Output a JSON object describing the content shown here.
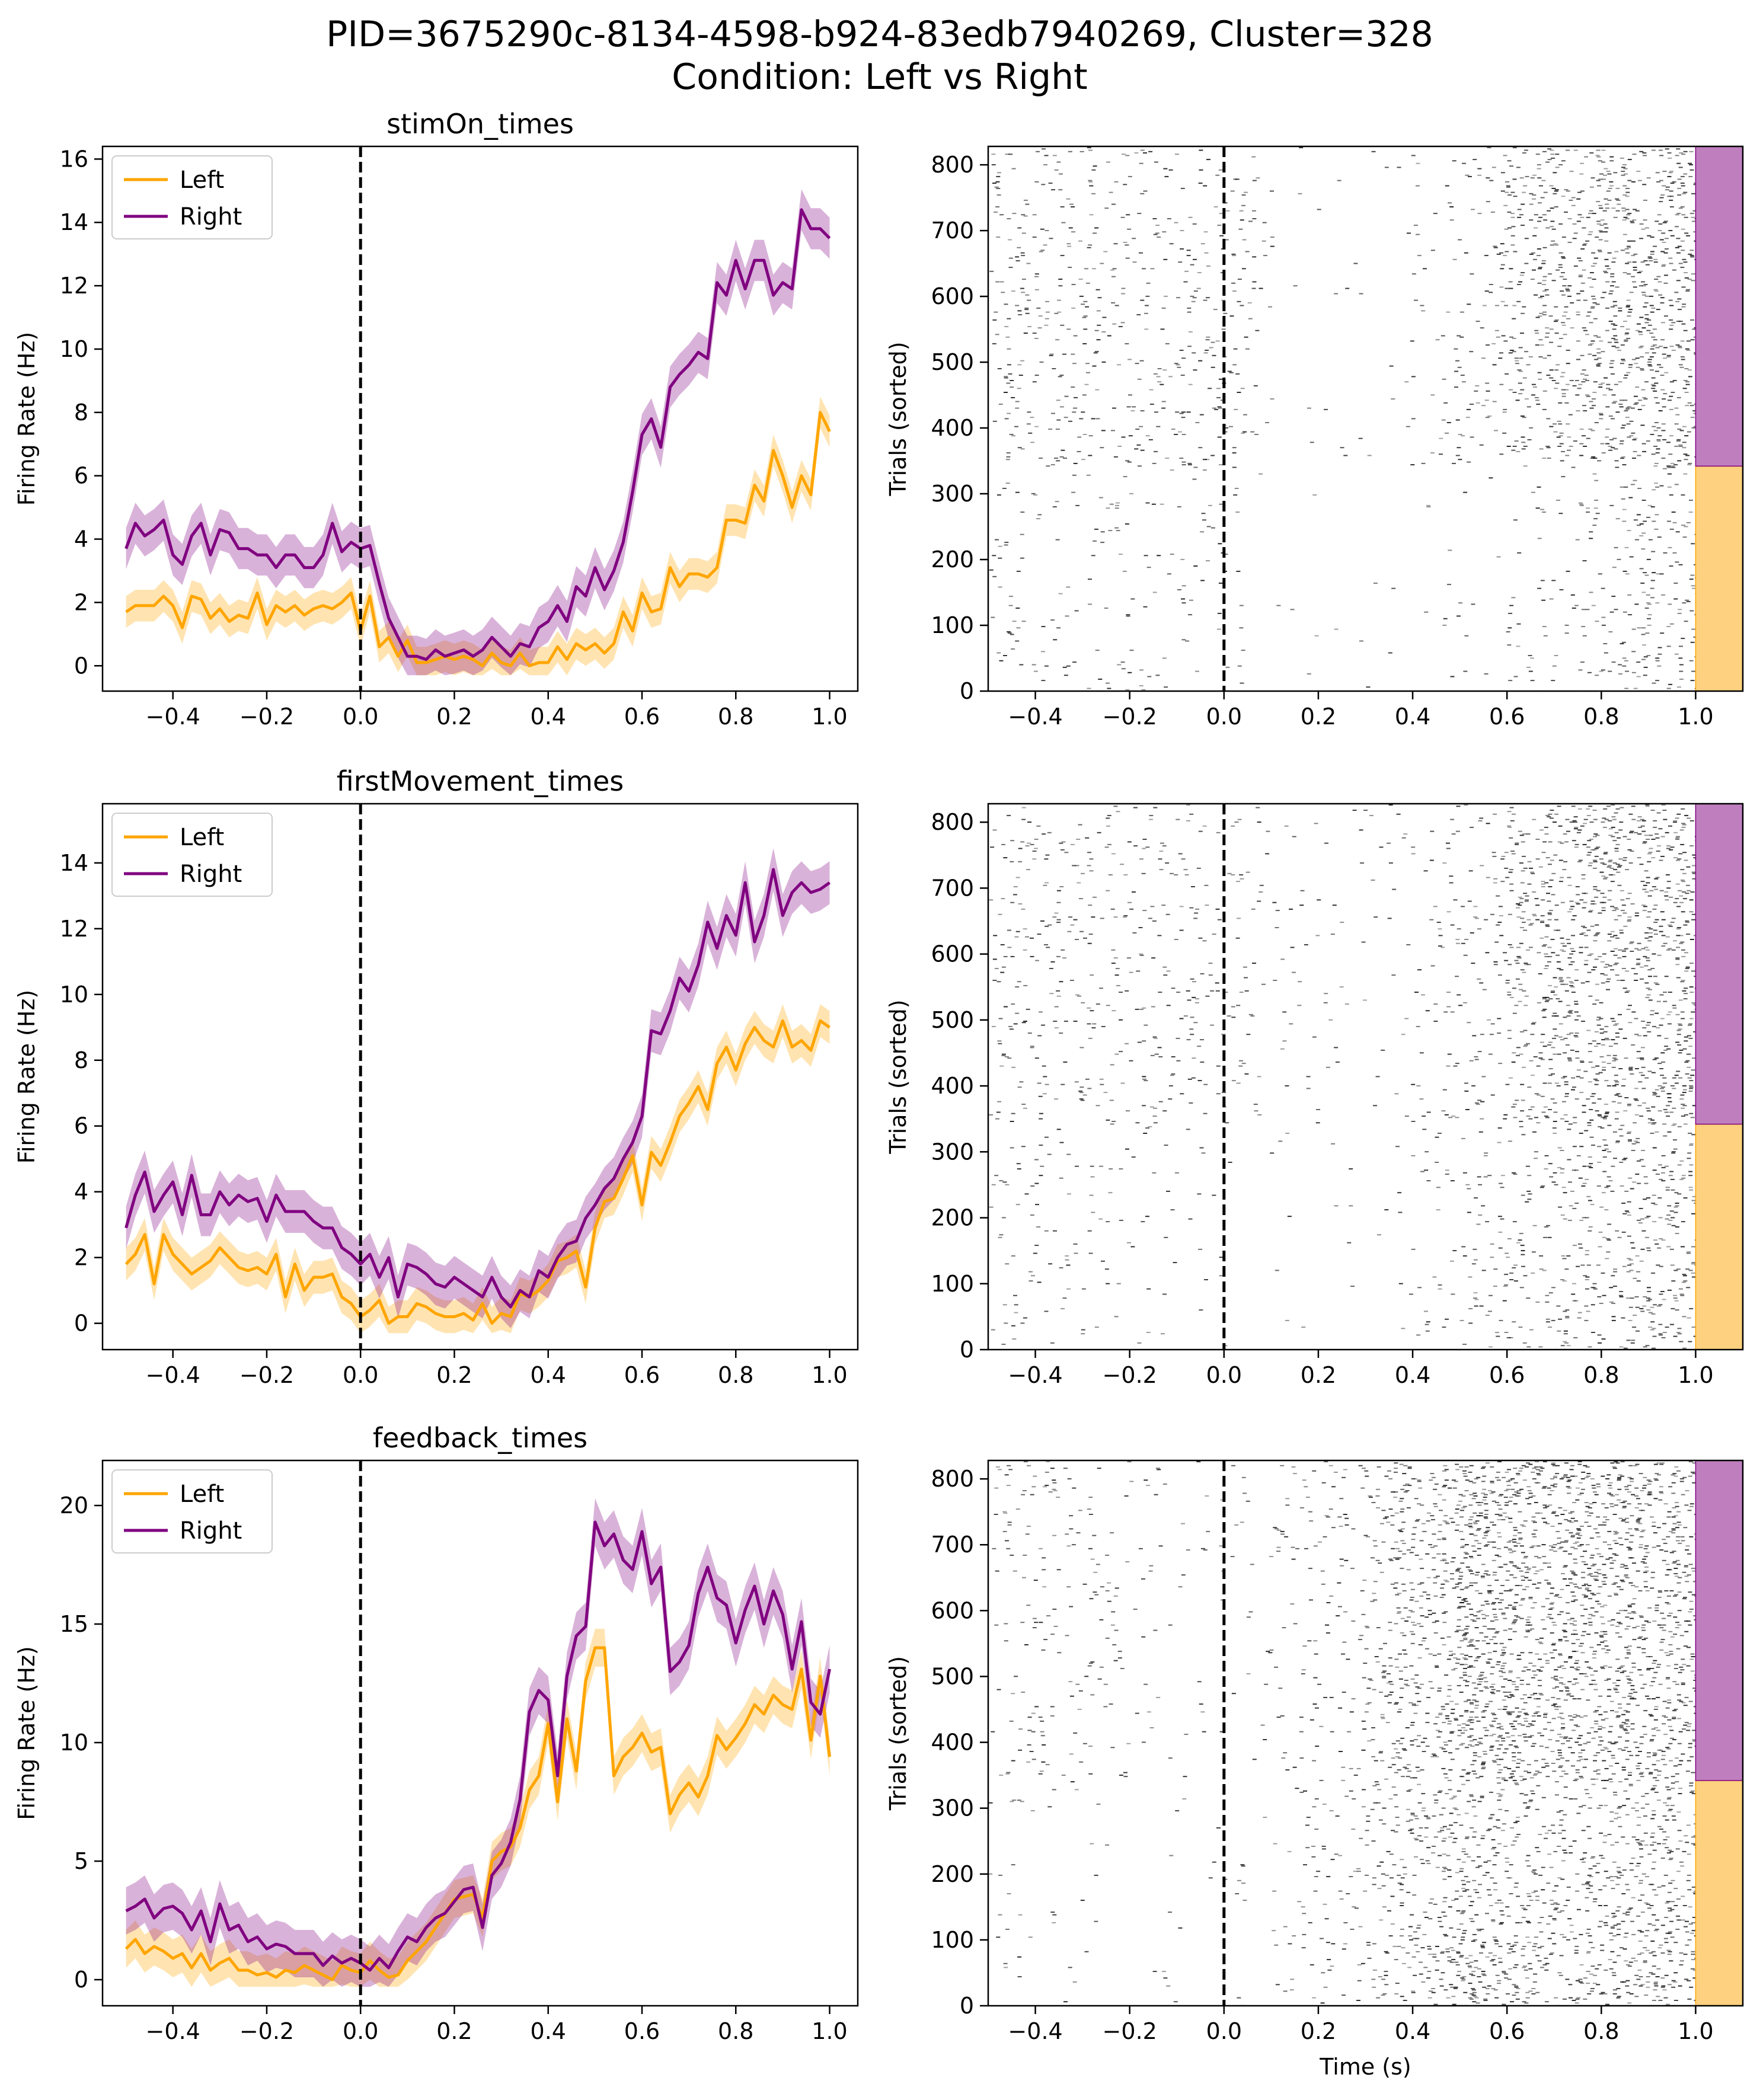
{
  "figure": {
    "suptitle_line1": "PID=3675290c-8134-4598-b924-83edb7940269, Cluster=328",
    "suptitle_line2": "Condition: Left vs Right"
  },
  "colors": {
    "left": "#ffa500",
    "right": "#800080",
    "left_bar": "#fdd17f",
    "right_bar": "#bf7fbf",
    "raster": "#000000"
  },
  "legend": {
    "left": "Left",
    "right": "Right"
  },
  "raster_axes": {
    "xlabel": "Time (s)",
    "ylabel": "Trials (sorted)",
    "xlim": [
      -0.5,
      1.1
    ],
    "ylim": [
      0,
      828
    ],
    "yticks": [
      0,
      100,
      200,
      300,
      400,
      500,
      600,
      700,
      800
    ],
    "xticks": [
      -0.4,
      -0.2,
      0.0,
      0.2,
      0.4,
      0.6,
      0.8,
      1.0
    ],
    "xtick_labels": [
      "−0.4",
      "−0.2",
      "0.0",
      "0.2",
      "0.4",
      "0.6",
      "0.8",
      "1.0"
    ],
    "left_trials": 342,
    "total_trials": 828
  },
  "chart_data": [
    {
      "type": "line",
      "title": "stimOn_times",
      "xlabel": "",
      "ylabel": "Firing Rate (Hz)",
      "xlim": [
        -0.55,
        1.06
      ],
      "ylim": [
        -0.8,
        16.4
      ],
      "yticks": [
        0,
        2,
        4,
        6,
        8,
        10,
        12,
        14,
        16
      ],
      "xticks": [
        -0.4,
        -0.2,
        0.0,
        0.2,
        0.4,
        0.6,
        0.8,
        1.0
      ],
      "xtick_labels": [
        "−0.4",
        "−0.2",
        "0.0",
        "0.2",
        "0.4",
        "0.6",
        "0.8",
        "1.0"
      ],
      "x": [
        -0.5,
        -0.48,
        -0.46,
        -0.44,
        -0.42,
        -0.4,
        -0.38,
        -0.36,
        -0.34,
        -0.32,
        -0.3,
        -0.28,
        -0.26,
        -0.24,
        -0.22,
        -0.2,
        -0.18,
        -0.16,
        -0.14,
        -0.12,
        -0.1,
        -0.08,
        -0.06,
        -0.04,
        -0.02,
        0.0,
        0.02,
        0.04,
        0.06,
        0.08,
        0.1,
        0.12,
        0.14,
        0.16,
        0.18,
        0.2,
        0.22,
        0.24,
        0.26,
        0.28,
        0.3,
        0.32,
        0.34,
        0.36,
        0.38,
        0.4,
        0.42,
        0.44,
        0.46,
        0.48,
        0.5,
        0.52,
        0.54,
        0.56,
        0.58,
        0.6,
        0.62,
        0.64,
        0.66,
        0.68,
        0.7,
        0.72,
        0.74,
        0.76,
        0.78,
        0.8,
        0.82,
        0.84,
        0.86,
        0.88,
        0.9,
        0.92,
        0.94,
        0.96,
        0.98,
        1.0
      ],
      "series": [
        {
          "name": "Left",
          "color": "#ffa500",
          "values": [
            1.7,
            1.9,
            1.9,
            1.9,
            2.2,
            1.9,
            1.2,
            2.2,
            2.1,
            1.5,
            1.8,
            1.4,
            1.6,
            1.5,
            2.3,
            1.3,
            1.9,
            1.7,
            1.9,
            1.6,
            1.8,
            1.9,
            1.8,
            2.0,
            2.3,
            1.1,
            2.2,
            0.6,
            0.9,
            0.3,
            0.8,
            0.1,
            0.1,
            0.2,
            0.3,
            0.2,
            0.3,
            0.2,
            0.0,
            0.4,
            0.1,
            0.0,
            0.4,
            0.0,
            0.1,
            0.1,
            0.6,
            0.2,
            0.7,
            0.5,
            0.7,
            0.4,
            0.7,
            1.7,
            1.1,
            2.3,
            1.7,
            1.8,
            3.1,
            2.5,
            2.9,
            2.9,
            2.8,
            3.1,
            4.6,
            4.6,
            4.5,
            5.7,
            5.2,
            6.8,
            6.0,
            5.0,
            6.0,
            5.4,
            8.0,
            7.4
          ]
        },
        {
          "name": "Right",
          "color": "#800080",
          "values": [
            3.7,
            4.5,
            4.1,
            4.3,
            4.6,
            3.5,
            3.2,
            4.1,
            4.5,
            3.5,
            4.3,
            4.2,
            3.7,
            3.7,
            3.5,
            3.5,
            3.1,
            3.5,
            3.5,
            3.1,
            3.1,
            3.5,
            4.5,
            3.6,
            3.9,
            3.7,
            3.8,
            2.6,
            1.5,
            0.9,
            0.3,
            0.3,
            0.2,
            0.5,
            0.3,
            0.4,
            0.5,
            0.3,
            0.5,
            0.9,
            0.6,
            0.3,
            0.7,
            0.6,
            1.2,
            1.4,
            1.9,
            1.4,
            2.5,
            2.2,
            3.1,
            2.4,
            3.0,
            3.9,
            5.5,
            7.3,
            7.8,
            6.9,
            8.8,
            9.2,
            9.5,
            9.9,
            9.7,
            12.1,
            11.7,
            12.8,
            11.9,
            12.8,
            12.8,
            11.7,
            12.1,
            11.9,
            14.4,
            13.8,
            13.8,
            13.5
          ]
        }
      ],
      "bands": [
        {
          "series": "Left",
          "halfwidth": 0.5
        },
        {
          "series": "Right",
          "halfwidth": 0.65
        }
      ],
      "legend_position": "top-left"
    },
    {
      "type": "line",
      "title": "firstMovement_times",
      "xlabel": "",
      "ylabel": "Firing Rate (Hz)",
      "xlim": [
        -0.55,
        1.06
      ],
      "ylim": [
        -0.8,
        15.8
      ],
      "yticks": [
        0,
        2,
        4,
        6,
        8,
        10,
        12,
        14
      ],
      "xticks": [
        -0.4,
        -0.2,
        0.0,
        0.2,
        0.4,
        0.6,
        0.8,
        1.0
      ],
      "xtick_labels": [
        "−0.4",
        "−0.2",
        "0.0",
        "0.2",
        "0.4",
        "0.6",
        "0.8",
        "1.0"
      ],
      "x": [
        -0.5,
        -0.48,
        -0.46,
        -0.44,
        -0.42,
        -0.4,
        -0.38,
        -0.36,
        -0.34,
        -0.32,
        -0.3,
        -0.28,
        -0.26,
        -0.24,
        -0.22,
        -0.2,
        -0.18,
        -0.16,
        -0.14,
        -0.12,
        -0.1,
        -0.08,
        -0.06,
        -0.04,
        -0.02,
        0.0,
        0.02,
        0.04,
        0.06,
        0.08,
        0.1,
        0.12,
        0.14,
        0.16,
        0.18,
        0.2,
        0.22,
        0.24,
        0.26,
        0.28,
        0.3,
        0.32,
        0.34,
        0.36,
        0.38,
        0.4,
        0.42,
        0.44,
        0.46,
        0.48,
        0.5,
        0.52,
        0.54,
        0.56,
        0.58,
        0.6,
        0.62,
        0.64,
        0.66,
        0.68,
        0.7,
        0.72,
        0.74,
        0.76,
        0.78,
        0.8,
        0.82,
        0.84,
        0.86,
        0.88,
        0.9,
        0.92,
        0.94,
        0.96,
        0.98,
        1.0
      ],
      "series": [
        {
          "name": "Left",
          "color": "#ffa500",
          "values": [
            1.8,
            2.1,
            2.7,
            1.2,
            2.7,
            2.1,
            1.8,
            1.5,
            1.7,
            1.9,
            2.3,
            2.0,
            1.7,
            1.6,
            1.7,
            1.5,
            2.1,
            0.8,
            1.8,
            1.0,
            1.4,
            1.4,
            1.5,
            0.8,
            0.6,
            0.2,
            0.4,
            0.7,
            0.0,
            0.2,
            0.2,
            0.6,
            0.5,
            0.3,
            0.2,
            0.2,
            0.3,
            0.1,
            0.6,
            0.0,
            0.3,
            0.2,
            0.9,
            0.8,
            1.0,
            1.3,
            1.9,
            2.0,
            2.2,
            1.1,
            2.9,
            3.7,
            3.8,
            4.4,
            5.1,
            3.6,
            5.2,
            4.8,
            5.5,
            6.3,
            6.7,
            7.2,
            6.5,
            7.9,
            8.4,
            7.7,
            8.5,
            9.0,
            8.6,
            8.4,
            9.2,
            8.4,
            8.6,
            8.3,
            9.2,
            9.0
          ]
        },
        {
          "name": "Right",
          "color": "#800080",
          "values": [
            2.9,
            3.9,
            4.6,
            3.4,
            3.9,
            4.3,
            3.3,
            4.5,
            3.3,
            3.3,
            4.0,
            3.6,
            3.9,
            3.7,
            3.8,
            3.1,
            3.9,
            3.4,
            3.4,
            3.4,
            3.1,
            2.9,
            2.9,
            2.3,
            2.1,
            1.8,
            2.1,
            1.4,
            2.0,
            0.8,
            1.8,
            1.7,
            1.5,
            1.2,
            1.1,
            1.4,
            1.2,
            1.0,
            0.8,
            1.4,
            0.8,
            0.5,
            1.0,
            0.8,
            1.6,
            1.4,
            2.0,
            2.4,
            2.5,
            3.2,
            3.6,
            4.1,
            4.4,
            5.0,
            5.5,
            6.3,
            8.9,
            8.8,
            9.5,
            10.5,
            10.1,
            10.9,
            12.2,
            11.4,
            12.4,
            11.8,
            13.4,
            11.6,
            12.4,
            13.8,
            12.4,
            13.1,
            13.4,
            13.1,
            13.2,
            13.4
          ]
        }
      ],
      "bands": [
        {
          "series": "Left",
          "halfwidth": 0.5
        },
        {
          "series": "Right",
          "halfwidth": 0.65
        }
      ],
      "legend_position": "top-left"
    },
    {
      "type": "line",
      "title": "feedback_times",
      "xlabel": "",
      "ylabel": "Firing Rate (Hz)",
      "xlim": [
        -0.55,
        1.06
      ],
      "ylim": [
        -1.1,
        21.9
      ],
      "yticks": [
        0,
        5,
        10,
        15,
        20
      ],
      "xticks": [
        -0.4,
        -0.2,
        0.0,
        0.2,
        0.4,
        0.6,
        0.8,
        1.0
      ],
      "xtick_labels": [
        "−0.4",
        "−0.2",
        "0.0",
        "0.2",
        "0.4",
        "0.6",
        "0.8",
        "1.0"
      ],
      "x": [
        -0.5,
        -0.48,
        -0.46,
        -0.44,
        -0.42,
        -0.4,
        -0.38,
        -0.36,
        -0.34,
        -0.32,
        -0.3,
        -0.28,
        -0.26,
        -0.24,
        -0.22,
        -0.2,
        -0.18,
        -0.16,
        -0.14,
        -0.12,
        -0.1,
        -0.08,
        -0.06,
        -0.04,
        -0.02,
        0.0,
        0.02,
        0.04,
        0.06,
        0.08,
        0.1,
        0.12,
        0.14,
        0.16,
        0.18,
        0.2,
        0.22,
        0.24,
        0.26,
        0.28,
        0.3,
        0.32,
        0.34,
        0.36,
        0.38,
        0.4,
        0.42,
        0.44,
        0.46,
        0.48,
        0.5,
        0.52,
        0.54,
        0.56,
        0.58,
        0.6,
        0.62,
        0.64,
        0.66,
        0.68,
        0.7,
        0.72,
        0.74,
        0.76,
        0.78,
        0.8,
        0.82,
        0.84,
        0.86,
        0.88,
        0.9,
        0.92,
        0.94,
        0.96,
        0.98,
        1.0
      ],
      "series": [
        {
          "name": "Left",
          "color": "#ffa500",
          "values": [
            1.3,
            1.7,
            1.1,
            1.4,
            1.2,
            0.9,
            1.1,
            0.5,
            1.1,
            0.4,
            0.7,
            0.9,
            0.4,
            0.4,
            0.2,
            0.3,
            0.1,
            0.4,
            0.3,
            0.6,
            0.4,
            0.2,
            0.0,
            0.6,
            0.4,
            0.3,
            0.8,
            0.4,
            0.1,
            0.2,
            0.8,
            1.2,
            1.6,
            2.2,
            2.8,
            3.4,
            3.5,
            3.6,
            2.6,
            5.0,
            5.4,
            5.6,
            6.4,
            8.0,
            8.6,
            10.8,
            7.5,
            11.0,
            8.8,
            12.6,
            14.0,
            14.0,
            8.6,
            9.4,
            9.8,
            10.4,
            9.6,
            9.8,
            7.0,
            7.8,
            8.3,
            7.7,
            8.6,
            10.3,
            9.7,
            10.2,
            10.8,
            11.6,
            11.2,
            12.0,
            11.6,
            11.4,
            13.1,
            10.1,
            12.8,
            9.4
          ]
        },
        {
          "name": "Right",
          "color": "#800080",
          "values": [
            2.9,
            3.1,
            3.4,
            2.6,
            3.0,
            3.1,
            2.8,
            2.1,
            2.9,
            1.6,
            3.2,
            2.1,
            2.3,
            1.6,
            1.8,
            1.3,
            1.5,
            1.4,
            1.1,
            1.1,
            1.1,
            0.6,
            1.0,
            0.7,
            0.9,
            0.7,
            0.4,
            0.9,
            0.5,
            1.2,
            1.8,
            1.6,
            2.2,
            2.6,
            2.8,
            3.3,
            3.8,
            3.9,
            2.2,
            4.4,
            4.9,
            5.8,
            7.6,
            11.3,
            12.2,
            11.8,
            8.6,
            12.8,
            14.5,
            14.9,
            19.3,
            18.3,
            18.8,
            17.7,
            17.3,
            18.9,
            16.7,
            17.4,
            13.0,
            13.4,
            14.1,
            16.3,
            17.4,
            16.1,
            15.8,
            14.2,
            15.6,
            16.6,
            15.0,
            16.4,
            15.4,
            13.1,
            15.1,
            11.7,
            11.2,
            13.1
          ]
        }
      ],
      "bands": [
        {
          "series": "Left",
          "halfwidth": 0.8
        },
        {
          "series": "Right",
          "halfwidth": 1.0
        }
      ],
      "legend_position": "top-left"
    }
  ]
}
